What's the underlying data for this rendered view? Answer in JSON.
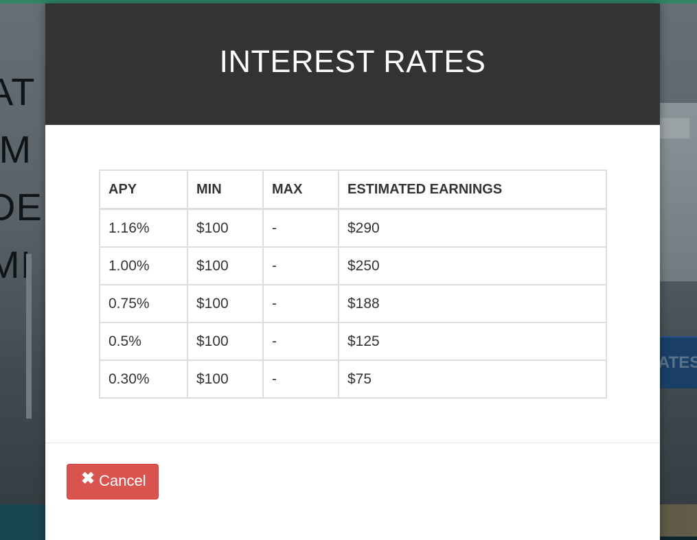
{
  "background": {
    "hero_lines": [
      "AT",
      "IM",
      "DEI",
      "MI"
    ],
    "rates_button_label": "ATES",
    "accent_color": "#3aa37a"
  },
  "modal": {
    "title": "INTEREST RATES",
    "table": {
      "columns": [
        "APY",
        "MIN",
        "MAX",
        "ESTIMATED EARNINGS"
      ],
      "rows": [
        {
          "apy": "1.16%",
          "min": "$100",
          "max": "-",
          "earnings": "$290"
        },
        {
          "apy": "1.00%",
          "min": "$100",
          "max": "-",
          "earnings": "$250"
        },
        {
          "apy": "0.75%",
          "min": "$100",
          "max": "-",
          "earnings": "$188"
        },
        {
          "apy": "0.5%",
          "min": "$100",
          "max": "-",
          "earnings": "$125"
        },
        {
          "apy": "0.30%",
          "min": "$100",
          "max": "-",
          "earnings": "$75"
        }
      ]
    },
    "footer": {
      "cancel_icon": "close-icon",
      "cancel_label": "Cancel",
      "cancel_color": "#d9534f"
    },
    "header_color": "#333333"
  }
}
